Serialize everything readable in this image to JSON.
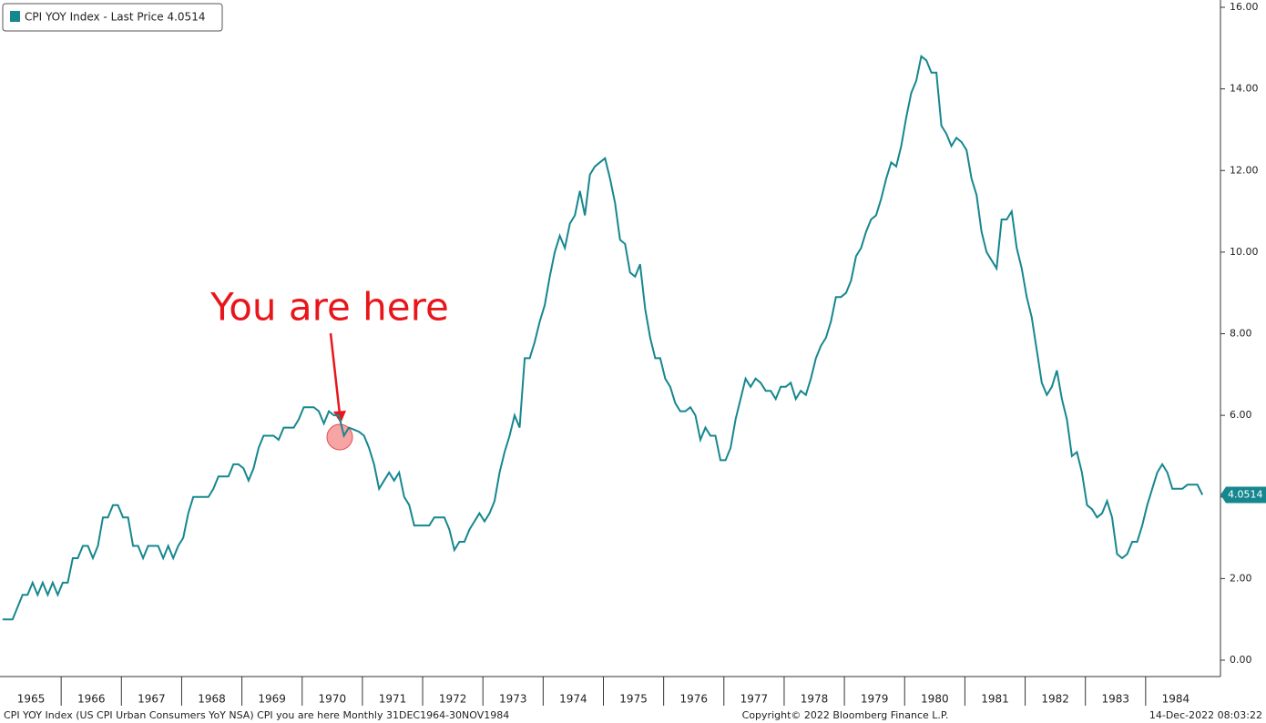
{
  "chart_data": {
    "type": "line",
    "legend": "CPI YOY Index - Last Price 4.0514",
    "last_price_label": "4.0514",
    "annotation": "You are here",
    "footer_left": "CPI YOY Index (US CPI Urban Consumers YoY NSA) CPI you are here  Monthly 31DEC1964-30NOV1984",
    "footer_center": "Copyright© 2022 Bloomberg Finance L.P.",
    "footer_right": "14-Dec-2022 08:03:22",
    "year_labels": [
      "1965",
      "1966",
      "1967",
      "1968",
      "1969",
      "1970",
      "1971",
      "1972",
      "1973",
      "1974",
      "1975",
      "1976",
      "1977",
      "1978",
      "1979",
      "1980",
      "1981",
      "1982",
      "1983",
      "1984"
    ],
    "ylim": [
      0,
      16
    ],
    "yticks": [
      {
        "value": 0,
        "label": "0.00"
      },
      {
        "value": 2,
        "label": "2.00"
      },
      {
        "value": 4,
        "label": "4.00"
      },
      {
        "value": 6,
        "label": "6.00"
      },
      {
        "value": 8,
        "label": "8.00"
      },
      {
        "value": 10,
        "label": "10.00"
      },
      {
        "value": 12,
        "label": "12.00"
      },
      {
        "value": 14,
        "label": "14.00"
      },
      {
        "value": 16,
        "label": "16.00"
      }
    ],
    "series": [
      {
        "name": "CPI YOY Index",
        "color": "#16878f",
        "values": [
          1.0,
          1.0,
          1.0,
          1.3,
          1.6,
          1.6,
          1.9,
          1.6,
          1.9,
          1.6,
          1.9,
          1.6,
          1.9,
          1.9,
          2.5,
          2.5,
          2.8,
          2.8,
          2.5,
          2.8,
          3.5,
          3.5,
          3.8,
          3.8,
          3.5,
          3.5,
          2.8,
          2.8,
          2.5,
          2.8,
          2.8,
          2.8,
          2.5,
          2.8,
          2.5,
          2.8,
          3.0,
          3.6,
          4.0,
          4.0,
          4.0,
          4.0,
          4.2,
          4.5,
          4.5,
          4.5,
          4.8,
          4.8,
          4.7,
          4.4,
          4.7,
          5.2,
          5.5,
          5.5,
          5.5,
          5.4,
          5.7,
          5.7,
          5.7,
          5.9,
          6.2,
          6.2,
          6.2,
          6.1,
          5.8,
          6.1,
          6.0,
          6.0,
          5.5,
          5.7,
          5.65,
          5.6,
          5.5,
          5.2,
          4.8,
          4.2,
          4.4,
          4.6,
          4.4,
          4.6,
          4.0,
          3.8,
          3.3,
          3.3,
          3.3,
          3.3,
          3.5,
          3.5,
          3.5,
          3.2,
          2.7,
          2.9,
          2.9,
          3.2,
          3.4,
          3.6,
          3.4,
          3.6,
          3.9,
          4.6,
          5.1,
          5.5,
          6.0,
          5.7,
          7.4,
          7.4,
          7.8,
          8.3,
          8.7,
          9.4,
          10.0,
          10.4,
          10.1,
          10.7,
          10.9,
          11.5,
          10.9,
          11.9,
          12.1,
          12.2,
          12.3,
          11.8,
          11.2,
          10.3,
          10.2,
          9.5,
          9.4,
          9.7,
          8.6,
          7.9,
          7.4,
          7.4,
          6.9,
          6.7,
          6.3,
          6.1,
          6.1,
          6.2,
          6.0,
          5.4,
          5.7,
          5.5,
          5.5,
          4.9,
          4.9,
          5.2,
          5.9,
          6.4,
          6.9,
          6.7,
          6.9,
          6.8,
          6.6,
          6.6,
          6.4,
          6.7,
          6.7,
          6.8,
          6.4,
          6.6,
          6.5,
          6.9,
          7.4,
          7.7,
          7.9,
          8.3,
          8.9,
          8.9,
          9.0,
          9.3,
          9.9,
          10.1,
          10.5,
          10.8,
          10.9,
          11.3,
          11.8,
          12.2,
          12.1,
          12.6,
          13.3,
          13.9,
          14.2,
          14.8,
          14.7,
          14.4,
          14.4,
          13.1,
          12.9,
          12.6,
          12.8,
          12.7,
          12.5,
          11.8,
          11.4,
          10.5,
          10.0,
          9.8,
          9.6,
          10.8,
          10.8,
          11.0,
          10.1,
          9.6,
          8.9,
          8.4,
          7.6,
          6.8,
          6.5,
          6.7,
          7.1,
          6.4,
          5.9,
          5.0,
          5.1,
          4.6,
          3.8,
          3.7,
          3.5,
          3.6,
          3.9,
          3.5,
          2.6,
          2.5,
          2.6,
          2.9,
          2.9,
          3.3,
          3.8,
          4.2,
          4.6,
          4.8,
          4.6,
          4.2,
          4.2,
          4.2,
          4.3,
          4.3,
          4.3,
          4.0514
        ]
      }
    ]
  }
}
